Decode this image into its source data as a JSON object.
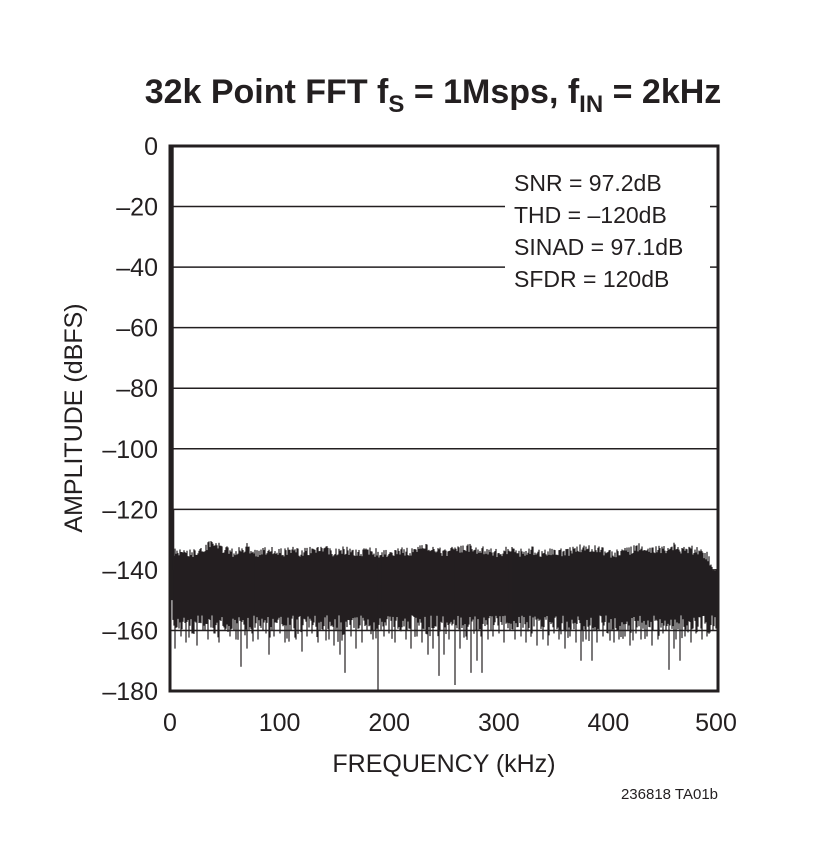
{
  "chart_data": {
    "type": "bar",
    "title": {
      "main": "32k Point FFT f",
      "sub1": "S",
      "mid": " = 1Msps, f",
      "sub2": "IN",
      "end": " = 2kHz"
    },
    "xlabel": "FREQUENCY (kHz)",
    "ylabel": "AMPLITUDE (dBFS)",
    "xlim": [
      0,
      500
    ],
    "ylim": [
      -180,
      0
    ],
    "xticks": [
      "0",
      "100",
      "200",
      "300",
      "400",
      "500"
    ],
    "yticks": [
      "0",
      "–20",
      "–40",
      "–60",
      "–80",
      "–100",
      "–120",
      "–140",
      "–160",
      "–180"
    ],
    "grid": "horizontal",
    "annotations": [
      "SNR = 97.2dB",
      "THD = –120dB",
      "SINAD = 97.1dB",
      "SFDR = 120dB"
    ],
    "footnote": "236818 TA01b",
    "fundamental": {
      "frequency_khz": 2,
      "amplitude_dbfs": 0
    },
    "spur": {
      "frequency_khz": 3,
      "amplitude_dbfs": -120
    },
    "noise_upper_envelope": {
      "step_khz": 10,
      "values": [
        -132,
        -133,
        -133,
        -132,
        -129,
        -132,
        -133,
        -131,
        -133,
        -132,
        -133,
        -132,
        -133,
        -132,
        -131,
        -133,
        -132,
        -133,
        -132,
        -133,
        -133,
        -132,
        -133,
        -131,
        -132,
        -133,
        -132,
        -131,
        -132,
        -132,
        -133,
        -132,
        -133,
        -132,
        -133,
        -132,
        -133,
        -132,
        -131,
        -132,
        -133,
        -133,
        -132,
        -131,
        -132,
        -132,
        -131,
        -132,
        -132,
        -134,
        -140
      ]
    },
    "noise_lower_envelope": {
      "step_khz": 5,
      "values": [
        -172,
        -166,
        -162,
        -164,
        -161,
        -165,
        -160,
        -163,
        -161,
        -164,
        -160,
        -162,
        -163,
        -172,
        -166,
        -161,
        -163,
        -160,
        -168,
        -162,
        -161,
        -164,
        -160,
        -163,
        -167,
        -162,
        -161,
        -164,
        -160,
        -163,
        -165,
        -168,
        -174,
        -162,
        -166,
        -164,
        -160,
        -163,
        -180,
        -162,
        -161,
        -164,
        -160,
        -163,
        -166,
        -162,
        -164,
        -168,
        -166,
        -175,
        -168,
        -163,
        -178,
        -166,
        -162,
        -174,
        -170,
        -174,
        -163,
        -162,
        -161,
        -164,
        -160,
        -163,
        -162,
        -164,
        -161,
        -165,
        -163,
        -165,
        -161,
        -163,
        -166,
        -162,
        -164,
        -170,
        -163,
        -170,
        -164,
        -162,
        -161,
        -164,
        -163,
        -162,
        -165,
        -161,
        -163,
        -162,
        -165,
        -163,
        -161,
        -173,
        -166,
        -170,
        -162,
        -164,
        -161,
        -163,
        -162,
        -160,
        -145
      ]
    },
    "colors": {
      "ink": "#231f20",
      "background": "#ffffff"
    }
  }
}
